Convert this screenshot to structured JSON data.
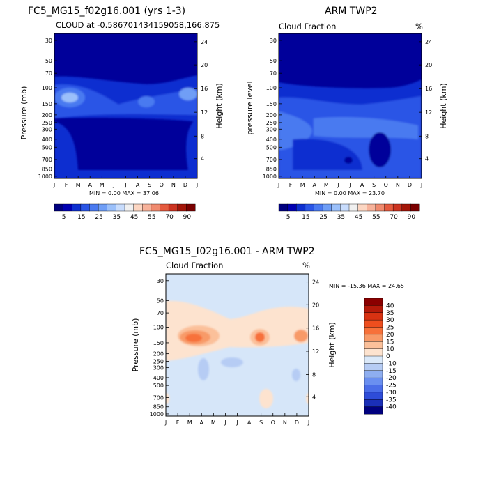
{
  "chart_data": [
    {
      "id": "p1",
      "type": "heatmap",
      "title": "FC5_MG15_f02g16.001 (yrs 1-3)",
      "subtitle_left": "CLOUD at -0.586701434159058,166.875",
      "subtitle_right": "",
      "ylabel_left": "Pressure (mb)",
      "ylabel_right": "Height (km)",
      "x_ticks": [
        "J",
        "F",
        "M",
        "A",
        "M",
        "J",
        "J",
        "A",
        "S",
        "O",
        "N",
        "D",
        "J"
      ],
      "pressure_ticks": [
        "30",
        "50",
        "70",
        "100",
        "150",
        "200",
        "250",
        "300",
        "400",
        "500",
        "700",
        "850",
        "1000"
      ],
      "height_ticks": [
        "24",
        "20",
        "16",
        "12",
        "8",
        "4"
      ],
      "minmax_text": "MIN =   0.00 MAX =  37.06",
      "min": 0.0,
      "max": 37.06,
      "colorbar_levels": [
        "5",
        "15",
        "25",
        "35",
        "45",
        "55",
        "70",
        "90"
      ],
      "colorbar_colors": [
        "#00007f",
        "#0000b2",
        "#0d2fd0",
        "#2a55e6",
        "#4a7af0",
        "#6f9ef6",
        "#9bc0fa",
        "#c8dcfc",
        "#f0f0f0",
        "#fcd6c2",
        "#f7b29a",
        "#f08a6e",
        "#e55a3e",
        "#cc3320",
        "#a31508",
        "#7a0000"
      ]
    },
    {
      "id": "p2",
      "type": "heatmap",
      "title": "ARM TWP2",
      "subtitle_left": "Cloud Fraction",
      "subtitle_right": "%",
      "ylabel_left": "pressure level",
      "ylabel_right": "Height (km)",
      "x_ticks": [
        "J",
        "F",
        "M",
        "A",
        "M",
        "J",
        "J",
        "A",
        "S",
        "O",
        "N",
        "D",
        "J"
      ],
      "pressure_ticks": [
        "30",
        "50",
        "70",
        "100",
        "150",
        "200",
        "250",
        "300",
        "400",
        "500",
        "700",
        "850",
        "1000"
      ],
      "height_ticks": [
        "24",
        "20",
        "16",
        "12",
        "8",
        "4"
      ],
      "minmax_text": "MIN =   0.00 MAX =  23.70",
      "min": 0.0,
      "max": 23.7,
      "colorbar_levels": [
        "5",
        "15",
        "25",
        "35",
        "45",
        "55",
        "70",
        "90"
      ],
      "colorbar_colors": [
        "#00007f",
        "#0000b2",
        "#0d2fd0",
        "#2a55e6",
        "#4a7af0",
        "#6f9ef6",
        "#9bc0fa",
        "#c8dcfc",
        "#f0f0f0",
        "#fcd6c2",
        "#f7b29a",
        "#f08a6e",
        "#e55a3e",
        "#cc3320",
        "#a31508",
        "#7a0000"
      ]
    },
    {
      "id": "p3",
      "type": "heatmap",
      "title": "FC5_MG15_f02g16.001 - ARM TWP2",
      "subtitle_left": "Cloud Fraction",
      "subtitle_right": "%",
      "ylabel_left": "Pressure (mb)",
      "ylabel_right": "Height (km)",
      "x_ticks": [
        "J",
        "F",
        "M",
        "A",
        "M",
        "J",
        "J",
        "A",
        "S",
        "O",
        "N",
        "D",
        "J"
      ],
      "pressure_ticks": [
        "30",
        "50",
        "70",
        "100",
        "150",
        "200",
        "250",
        "300",
        "400",
        "500",
        "700",
        "850",
        "1000"
      ],
      "height_ticks": [
        "24",
        "20",
        "16",
        "12",
        "8",
        "4"
      ],
      "minmax_text": "MIN = -15.36 MAX =  24.65",
      "min": -15.36,
      "max": 24.65,
      "colorbar_levels": [
        "40",
        "35",
        "30",
        "25",
        "20",
        "15",
        "10",
        "0",
        "-10",
        "-15",
        "-20",
        "-25",
        "-30",
        "-35",
        "-40"
      ],
      "colorbar_colors": [
        "#8b0000",
        "#b51a0a",
        "#d83212",
        "#ee4e1e",
        "#f7713a",
        "#f89a68",
        "#fbc09a",
        "#fde3cf",
        "#dbe9f9",
        "#b6ccf4",
        "#8eaef0",
        "#6a8ff0",
        "#4a6de8",
        "#2e4cd8",
        "#1a2fb8",
        "#00007f"
      ]
    }
  ]
}
